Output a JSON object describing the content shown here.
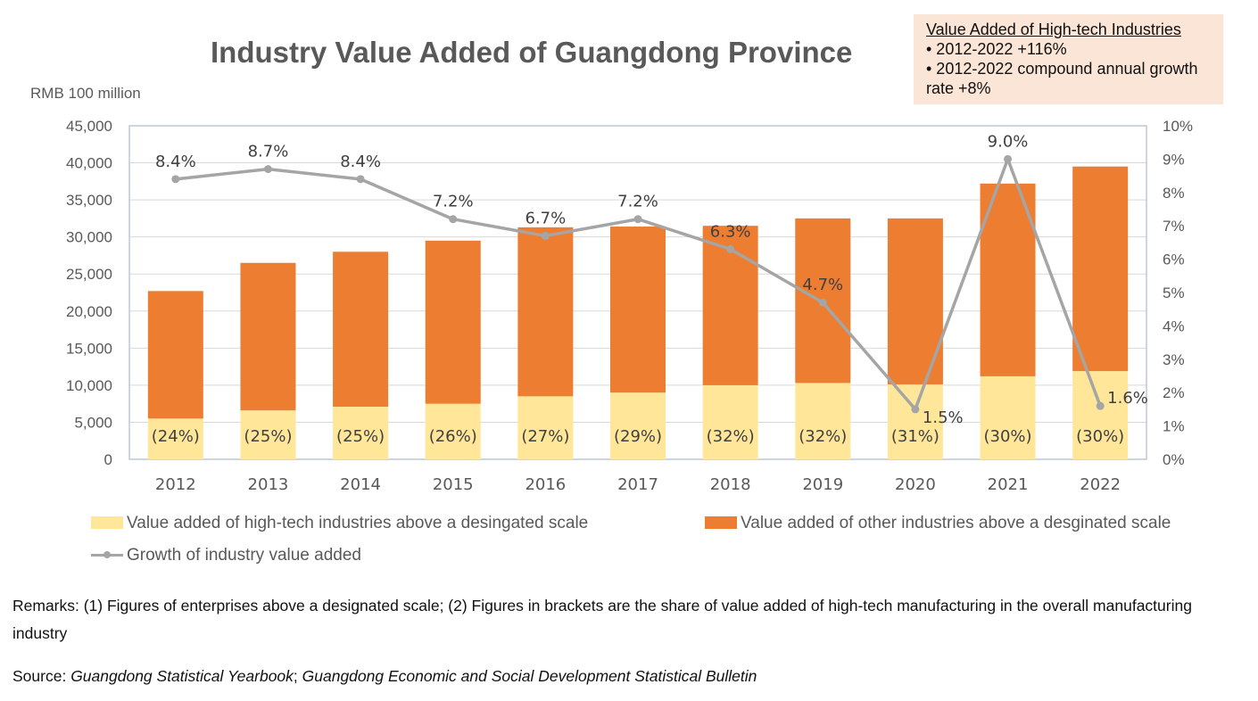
{
  "chart_data": {
    "type": "bar",
    "stacked": true,
    "title": "Industry Value Added of Guangdong Province",
    "ylabel": "RMB 100 million",
    "ylim": [
      0,
      45000
    ],
    "y2lim": [
      0,
      10
    ],
    "yticks": [
      "0",
      "5,000",
      "10,000",
      "15,000",
      "20,000",
      "25,000",
      "30,000",
      "35,000",
      "40,000",
      "45,000"
    ],
    "y2ticks": [
      "0%",
      "1%",
      "2%",
      "3%",
      "4%",
      "5%",
      "6%",
      "7%",
      "8%",
      "9%",
      "10%"
    ],
    "grid": true,
    "legend_position": "bottom",
    "categories": [
      "2012",
      "2013",
      "2014",
      "2015",
      "2016",
      "2017",
      "2018",
      "2019",
      "2020",
      "2021",
      "2022"
    ],
    "series": [
      {
        "name": "Value added of high-tech industries above a desingated scale",
        "type": "bar",
        "color": "#ffe699",
        "values": [
          5500,
          6600,
          7100,
          7500,
          8500,
          9000,
          10000,
          10300,
          10100,
          11200,
          11900
        ],
        "labels": [
          "(24%)",
          "(25%)",
          "(25%)",
          "(26%)",
          "(27%)",
          "(29%)",
          "(32%)",
          "(32%)",
          "(31%)",
          "(30%)",
          "(30%)"
        ]
      },
      {
        "name": "Value added of other industries above a desginated scale",
        "type": "bar",
        "color": "#ed7d31",
        "values": [
          17200,
          19900,
          20900,
          22000,
          22800,
          22400,
          21500,
          22200,
          22400,
          26000,
          27600
        ]
      },
      {
        "name": "Growth of industry value added",
        "type": "line",
        "axis": "right",
        "color": "#a5a5a5",
        "values": [
          8.4,
          8.7,
          8.4,
          7.2,
          6.7,
          7.2,
          6.3,
          4.7,
          1.5,
          9.0,
          1.6
        ],
        "labels": [
          "8.4%",
          "8.7%",
          "8.4%",
          "7.2%",
          "6.7%",
          "7.2%",
          "6.3%",
          "4.7%",
          "1.5%",
          "9.0%",
          "1.6%"
        ]
      }
    ]
  },
  "note": {
    "heading": "Value Added of High-tech Industries",
    "bullet1": "• 2012-2022 +116%",
    "bullet2": "• 2012-2022 compound annual growth rate +8%"
  },
  "remarks": "Remarks: (1) Figures of enterprises above a designated scale; (2) Figures in brackets are the share of value added of high-tech manufacturing in the overall manufacturing industry",
  "source": {
    "prefix": "Source: ",
    "pub1": "Guangdong Statistical Yearbook",
    "sep": "; ",
    "pub2": "Guangdong Economic and Social Development Statistical Bulletin"
  }
}
